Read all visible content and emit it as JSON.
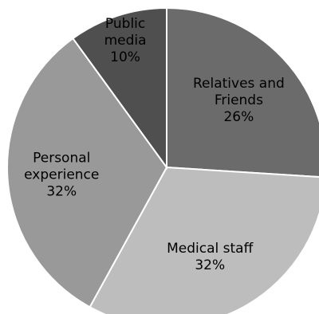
{
  "chart_data": {
    "type": "pie",
    "title": "",
    "slices": [
      {
        "label_lines": [
          "Relatives and",
          "Friends"
        ],
        "pct_label": "26%",
        "value": 26,
        "color": "#6b6b6b"
      },
      {
        "label_lines": [
          "Medical staff"
        ],
        "pct_label": "32%",
        "value": 32,
        "color": "#bdbdbd"
      },
      {
        "label_lines": [
          "Personal",
          "experience"
        ],
        "pct_label": "32%",
        "value": 32,
        "color": "#999999"
      },
      {
        "label_lines": [
          "Public",
          "media"
        ],
        "pct_label": "10%",
        "value": 10,
        "color": "#4f4f4f"
      }
    ],
    "legend": "none",
    "start_angle": "12 o'clock",
    "direction": "clockwise"
  }
}
